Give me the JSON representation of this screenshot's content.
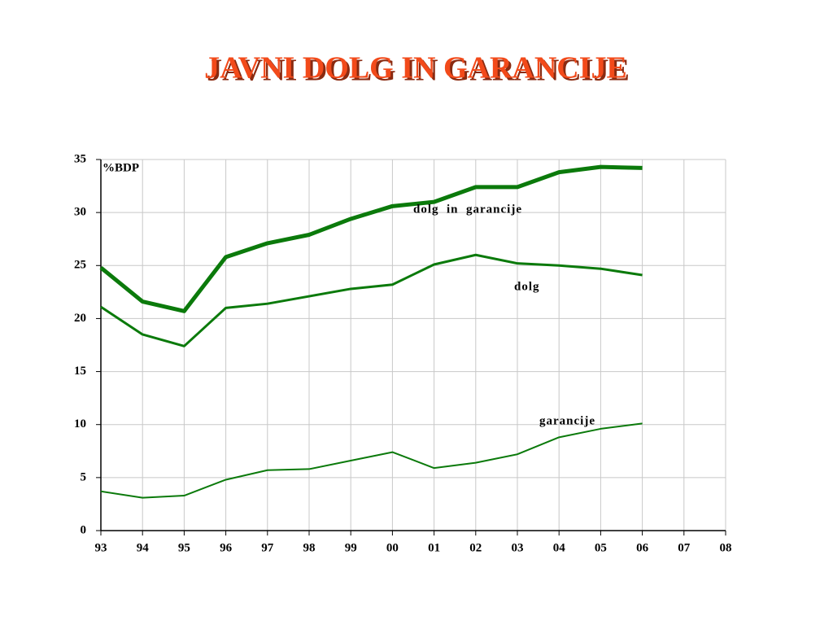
{
  "chart_data": {
    "type": "line",
    "title": "JAVNI DOLG IN GARANCIJE",
    "y_label": "%BDP",
    "categories": [
      "93",
      "94",
      "95",
      "96",
      "97",
      "98",
      "99",
      "00",
      "01",
      "02",
      "03",
      "04",
      "05",
      "06",
      "07",
      "08"
    ],
    "series": [
      {
        "name": "dolg  in  garancije",
        "color": "#0b7a0b",
        "values": [
          24.8,
          21.6,
          20.7,
          25.8,
          27.1,
          27.9,
          29.4,
          30.6,
          31.0,
          32.4,
          32.4,
          33.8,
          34.3,
          34.2,
          null,
          null
        ]
      },
      {
        "name": "dolg",
        "color": "#0b7a0b",
        "values": [
          21.1,
          18.5,
          17.4,
          21.0,
          21.4,
          22.1,
          22.8,
          23.2,
          25.1,
          26.0,
          25.2,
          25.0,
          24.7,
          24.1,
          null,
          null
        ]
      },
      {
        "name": "garancije",
        "color": "#0b7a0b",
        "values": [
          3.7,
          3.1,
          3.3,
          4.8,
          5.7,
          5.8,
          6.6,
          7.4,
          5.9,
          6.4,
          7.2,
          8.8,
          9.6,
          10.1,
          null,
          null
        ]
      }
    ],
    "ylim": [
      0,
      35
    ],
    "yticks": [
      0,
      5,
      10,
      15,
      20,
      25,
      30,
      35
    ],
    "grid": true
  }
}
